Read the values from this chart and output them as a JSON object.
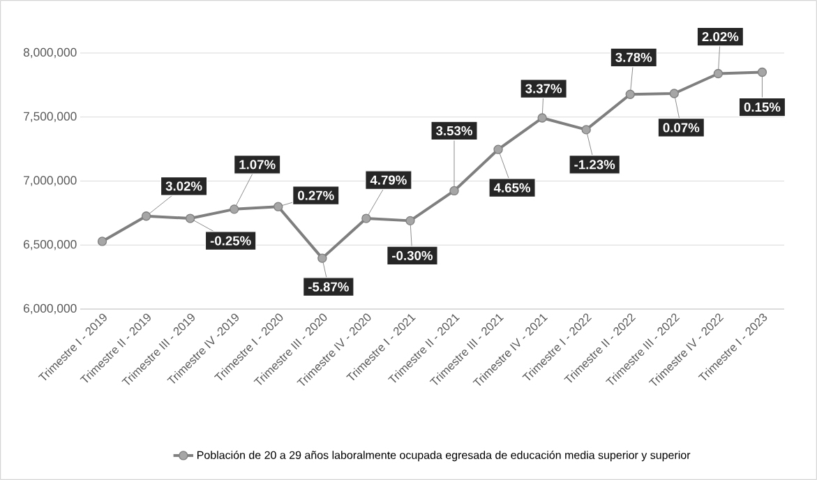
{
  "chart_data": {
    "type": "line",
    "categories": [
      "Trimestre I - 2019",
      "Trimestre II - 2019",
      "Trimestre III - 2019",
      "Trimestre IV -2019",
      "Trimestre I - 2020",
      "Trimestre III - 2020",
      "Trimestre IV - 2020",
      "Trimestre I - 2021",
      "Trimestre II - 2021",
      "Trimestre III - 2021",
      "Trimestre IV - 2021",
      "Trimestre I - 2022",
      "Trimestre II - 2022",
      "Trimestre III - 2022",
      "Trimestre IV - 2022",
      "Trimestre I - 2023"
    ],
    "series": [
      {
        "name": "Población de 20 a 29 años laboralmente ocupada egresada de educación media superior y superior",
        "color": "#7f7f7f",
        "values": [
          6529000,
          6726000,
          6708000,
          6780000,
          6800000,
          6397000,
          6708000,
          6690000,
          6924000,
          7247000,
          7493000,
          7401000,
          7677000,
          7684000,
          7839000,
          7850000
        ]
      }
    ],
    "annotations": [
      {
        "text": "3.02%",
        "x": "Trimestre II - 2019",
        "y": 6726000
      },
      {
        "text": "-0.25%",
        "x": "Trimestre III - 2019",
        "y": 6708000
      },
      {
        "text": "1.07%",
        "x": "Trimestre IV -2019",
        "y": 6780000
      },
      {
        "text": "0.27%",
        "x": "Trimestre I - 2020",
        "y": 6800000
      },
      {
        "text": "-5.87%",
        "x": "Trimestre III - 2020",
        "y": 6397000
      },
      {
        "text": "4.79%",
        "x": "Trimestre IV - 2020",
        "y": 6708000
      },
      {
        "text": "-0.30%",
        "x": "Trimestre I - 2021",
        "y": 6690000
      },
      {
        "text": "3.53%",
        "x": "Trimestre II - 2021",
        "y": 6924000
      },
      {
        "text": "4.65%",
        "x": "Trimestre III - 2021",
        "y": 7247000
      },
      {
        "text": "3.37%",
        "x": "Trimestre IV - 2021",
        "y": 7493000
      },
      {
        "text": "-1.23%",
        "x": "Trimestre I - 2022",
        "y": 7401000
      },
      {
        "text": "3.78%",
        "x": "Trimestre II - 2022",
        "y": 7677000
      },
      {
        "text": "0.07%",
        "x": "Trimestre III - 2022",
        "y": 7684000
      },
      {
        "text": "2.02%",
        "x": "Trimestre IV - 2022",
        "y": 7839000
      },
      {
        "text": "0.15%",
        "x": "Trimestre I - 2023",
        "y": 7850000
      }
    ],
    "ylim": [
      6000000,
      8000000
    ],
    "yticks": [
      {
        "value": 6000000,
        "label": "6,000,000"
      },
      {
        "value": 6500000,
        "label": "6,500,000"
      },
      {
        "value": 7000000,
        "label": "7,000,000"
      },
      {
        "value": 7500000,
        "label": "7,500,000"
      },
      {
        "value": 8000000,
        "label": "8,000,000"
      }
    ],
    "grid": "y",
    "legend": "bottom",
    "marker": "circle",
    "line_style": "solid"
  }
}
